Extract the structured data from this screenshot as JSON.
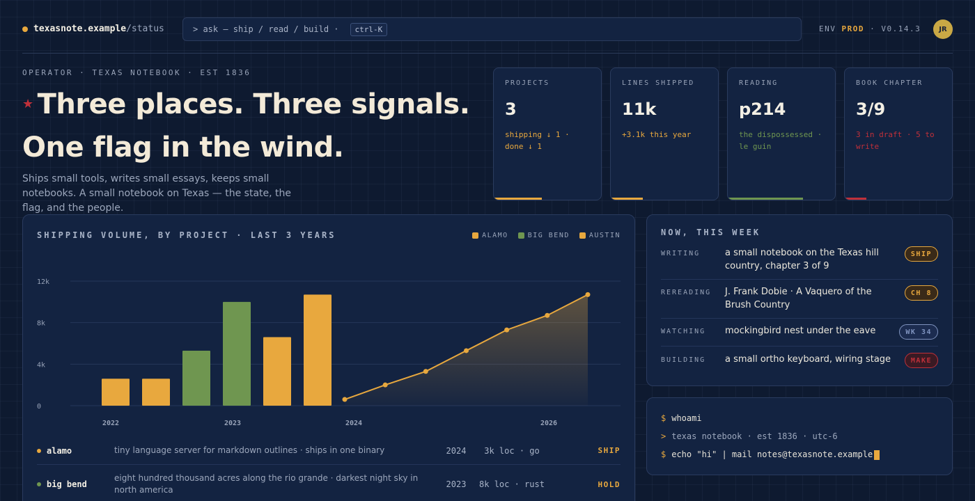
{
  "header": {
    "host": "texasnote.example",
    "path": "/status",
    "command_placeholder": "> ask — ship / read / build ·",
    "shortcut": "ctrl-K",
    "env_label": "ENV",
    "env_value": "PROD",
    "version": "· V0.14.3",
    "avatar_initials": "JR"
  },
  "hero": {
    "eyebrow": "OPERATOR · TEXAS NOTEBOOK · EST 1836",
    "star": "★",
    "headline": "Three places. Three signals. One flag in the wind.",
    "intro": "Ships small tools, writes small essays, keeps small notebooks. A small notebook on Texas — the state, the flag, and the people."
  },
  "stats": [
    {
      "label": "PROJECTS",
      "value": "3",
      "note": "shipping ↓ 1 · done ↓ 1",
      "color": "#e8a83e",
      "fill": 0.45
    },
    {
      "label": "LINES SHIPPED",
      "value": "11k",
      "note": "+3.1k this year",
      "color": "#e8a83e",
      "fill": 0.3
    },
    {
      "label": "READING",
      "value": "p214",
      "note": "the dispossessed · le guin",
      "color": "#6f9650",
      "fill": 0.7
    },
    {
      "label": "BOOK CHAPTER",
      "value": "3/9",
      "note": "3 in draft · 5 to write",
      "color": "#c0303a",
      "fill": 0.2
    }
  ],
  "chart_panel": {
    "title": "SHIPPING VOLUME, BY PROJECT · LAST 3 YEARS",
    "legend": [
      {
        "name": "ALAMO",
        "color": "#e8a83e"
      },
      {
        "name": "BIG BEND",
        "color": "#6f9650"
      },
      {
        "name": "AUSTIN",
        "color": "#e8a83e"
      }
    ]
  },
  "chart_data": {
    "type": "bar",
    "ylim": [
      0,
      12000
    ],
    "y_ticks": [
      {
        "value": 0,
        "label": "0"
      },
      {
        "value": 4000,
        "label": "4k"
      },
      {
        "value": 8000,
        "label": "8k"
      },
      {
        "value": 12000,
        "label": "12k"
      }
    ],
    "x_ticks": [
      "2022",
      "2023",
      "2024",
      "2026"
    ],
    "bars": [
      {
        "project": "ALAMO",
        "value": 2600,
        "color": "#e8a83e"
      },
      {
        "project": "ALAMO",
        "value": 2600,
        "color": "#e8a83e"
      },
      {
        "project": "BIG BEND",
        "value": 5300,
        "color": "#6f9650"
      },
      {
        "project": "BIG BEND",
        "value": 10000,
        "color": "#6f9650"
      },
      {
        "project": "AUSTIN",
        "value": 6600,
        "color": "#e8a83e"
      },
      {
        "project": "AUSTIN",
        "value": 10700,
        "color": "#e8a83e"
      }
    ],
    "line": {
      "color": "#e8a83e",
      "values": [
        600,
        2000,
        3300,
        5300,
        7300,
        8700,
        10700
      ]
    }
  },
  "projects": [
    {
      "name": "alamo",
      "dot_color": "#e8a83e",
      "desc": "tiny language server for markdown outlines · ships in one binary",
      "year": "2024",
      "loc": "3k loc · go",
      "status": "SHIP",
      "status_color": "#e8a83e"
    },
    {
      "name": "big bend",
      "dot_color": "#6f9650",
      "desc": "eight hundred thousand acres along the rio grande · darkest night sky in north america",
      "year": "2023",
      "loc": "8k loc · rust",
      "status": "HOLD",
      "status_color": "#e8a83e"
    }
  ],
  "now_panel": {
    "title": "NOW, THIS WEEK",
    "items": [
      {
        "kind": "WRITING",
        "text": "a small notebook on the Texas hill country, chapter 3 of 9",
        "pill": "SHIP",
        "pill_color": "#e8a83e",
        "pill_bg": "#3a2a18"
      },
      {
        "kind": "REREADING",
        "text": "J. Frank Dobie · A Vaquero of the Brush Country",
        "pill": "CH 8",
        "pill_color": "#e8a83e",
        "pill_bg": "#3a2a18"
      },
      {
        "kind": "WATCHING",
        "text": "mockingbird nest under the eave",
        "pill": "WK 34",
        "pill_color": "#7f93bf",
        "pill_bg": "#1c2c50"
      },
      {
        "kind": "BUILDING",
        "text": "a small ortho keyboard, wiring stage",
        "pill": "MAKE",
        "pill_color": "#c0303a",
        "pill_bg": "#3a1a24"
      }
    ]
  },
  "terminal": {
    "prompt": "$",
    "arrow": ">",
    "line1": "whoami",
    "line2": "texas notebook · est 1836 · utc-6",
    "line3": "echo \"hi\" | mail notes@texasnote.example"
  }
}
